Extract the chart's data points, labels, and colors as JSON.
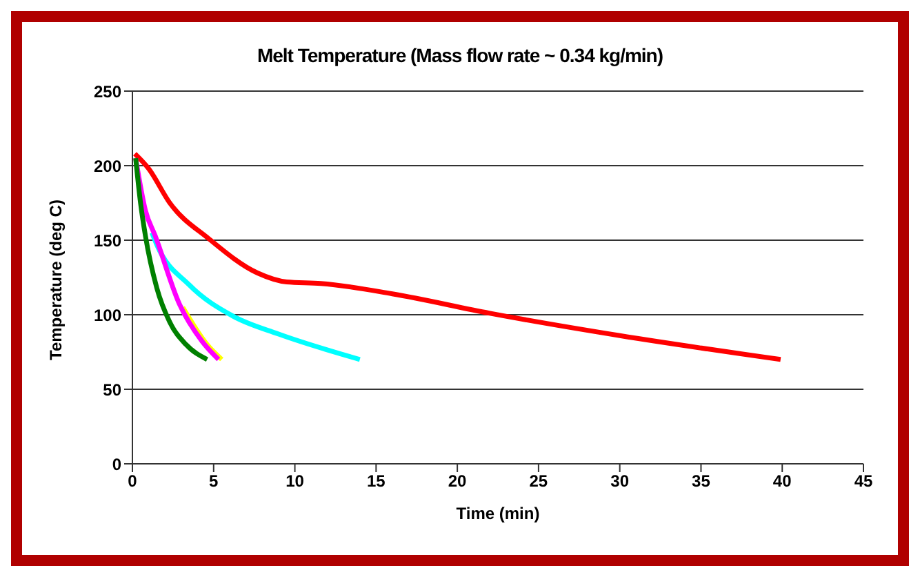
{
  "chart_data": {
    "type": "line",
    "title": "Melt Temperature (Mass flow rate ~ 0.34 kg/min)",
    "xlabel": "Time (min)",
    "ylabel": "Temperature (deg C)",
    "xlim": [
      0,
      45
    ],
    "xticks": [
      0,
      5,
      10,
      15,
      20,
      25,
      30,
      35,
      40,
      45
    ],
    "ylim": [
      0,
      250
    ],
    "yticks": [
      0,
      50,
      100,
      150,
      200,
      250
    ],
    "grid": "y",
    "marker": "none",
    "line_style": "solid",
    "series": [
      {
        "color": "#ff0000",
        "x": [
          0.15,
          1,
          2.3,
          4.7,
          7.7,
          9.5,
          11.6,
          16,
          22,
          30,
          39.9
        ],
        "values": [
          208,
          198,
          175,
          151,
          128,
          122,
          121,
          114,
          101,
          86,
          70
        ]
      },
      {
        "color": "#00ffff",
        "x": [
          1.2,
          1.5,
          3.5,
          6.2,
          9,
          14
        ],
        "values": [
          155,
          147,
          120,
          99,
          87,
          70
        ]
      },
      {
        "color": "#ffff00",
        "x": [
          3.1,
          4.6,
          5.5
        ],
        "values": [
          105,
          80,
          70
        ]
      },
      {
        "color": "#ff00ff",
        "x": [
          0.2,
          0.8,
          1.4,
          2.9,
          4.3,
          5.3
        ],
        "values": [
          205,
          170,
          153,
          107,
          82,
          70
        ]
      },
      {
        "color": "#008000",
        "x": [
          0.2,
          0.5,
          0.8,
          1.5,
          2.3,
          3.3,
          4.6
        ],
        "values": [
          205,
          175,
          153,
          118,
          95,
          80,
          70
        ]
      }
    ]
  }
}
